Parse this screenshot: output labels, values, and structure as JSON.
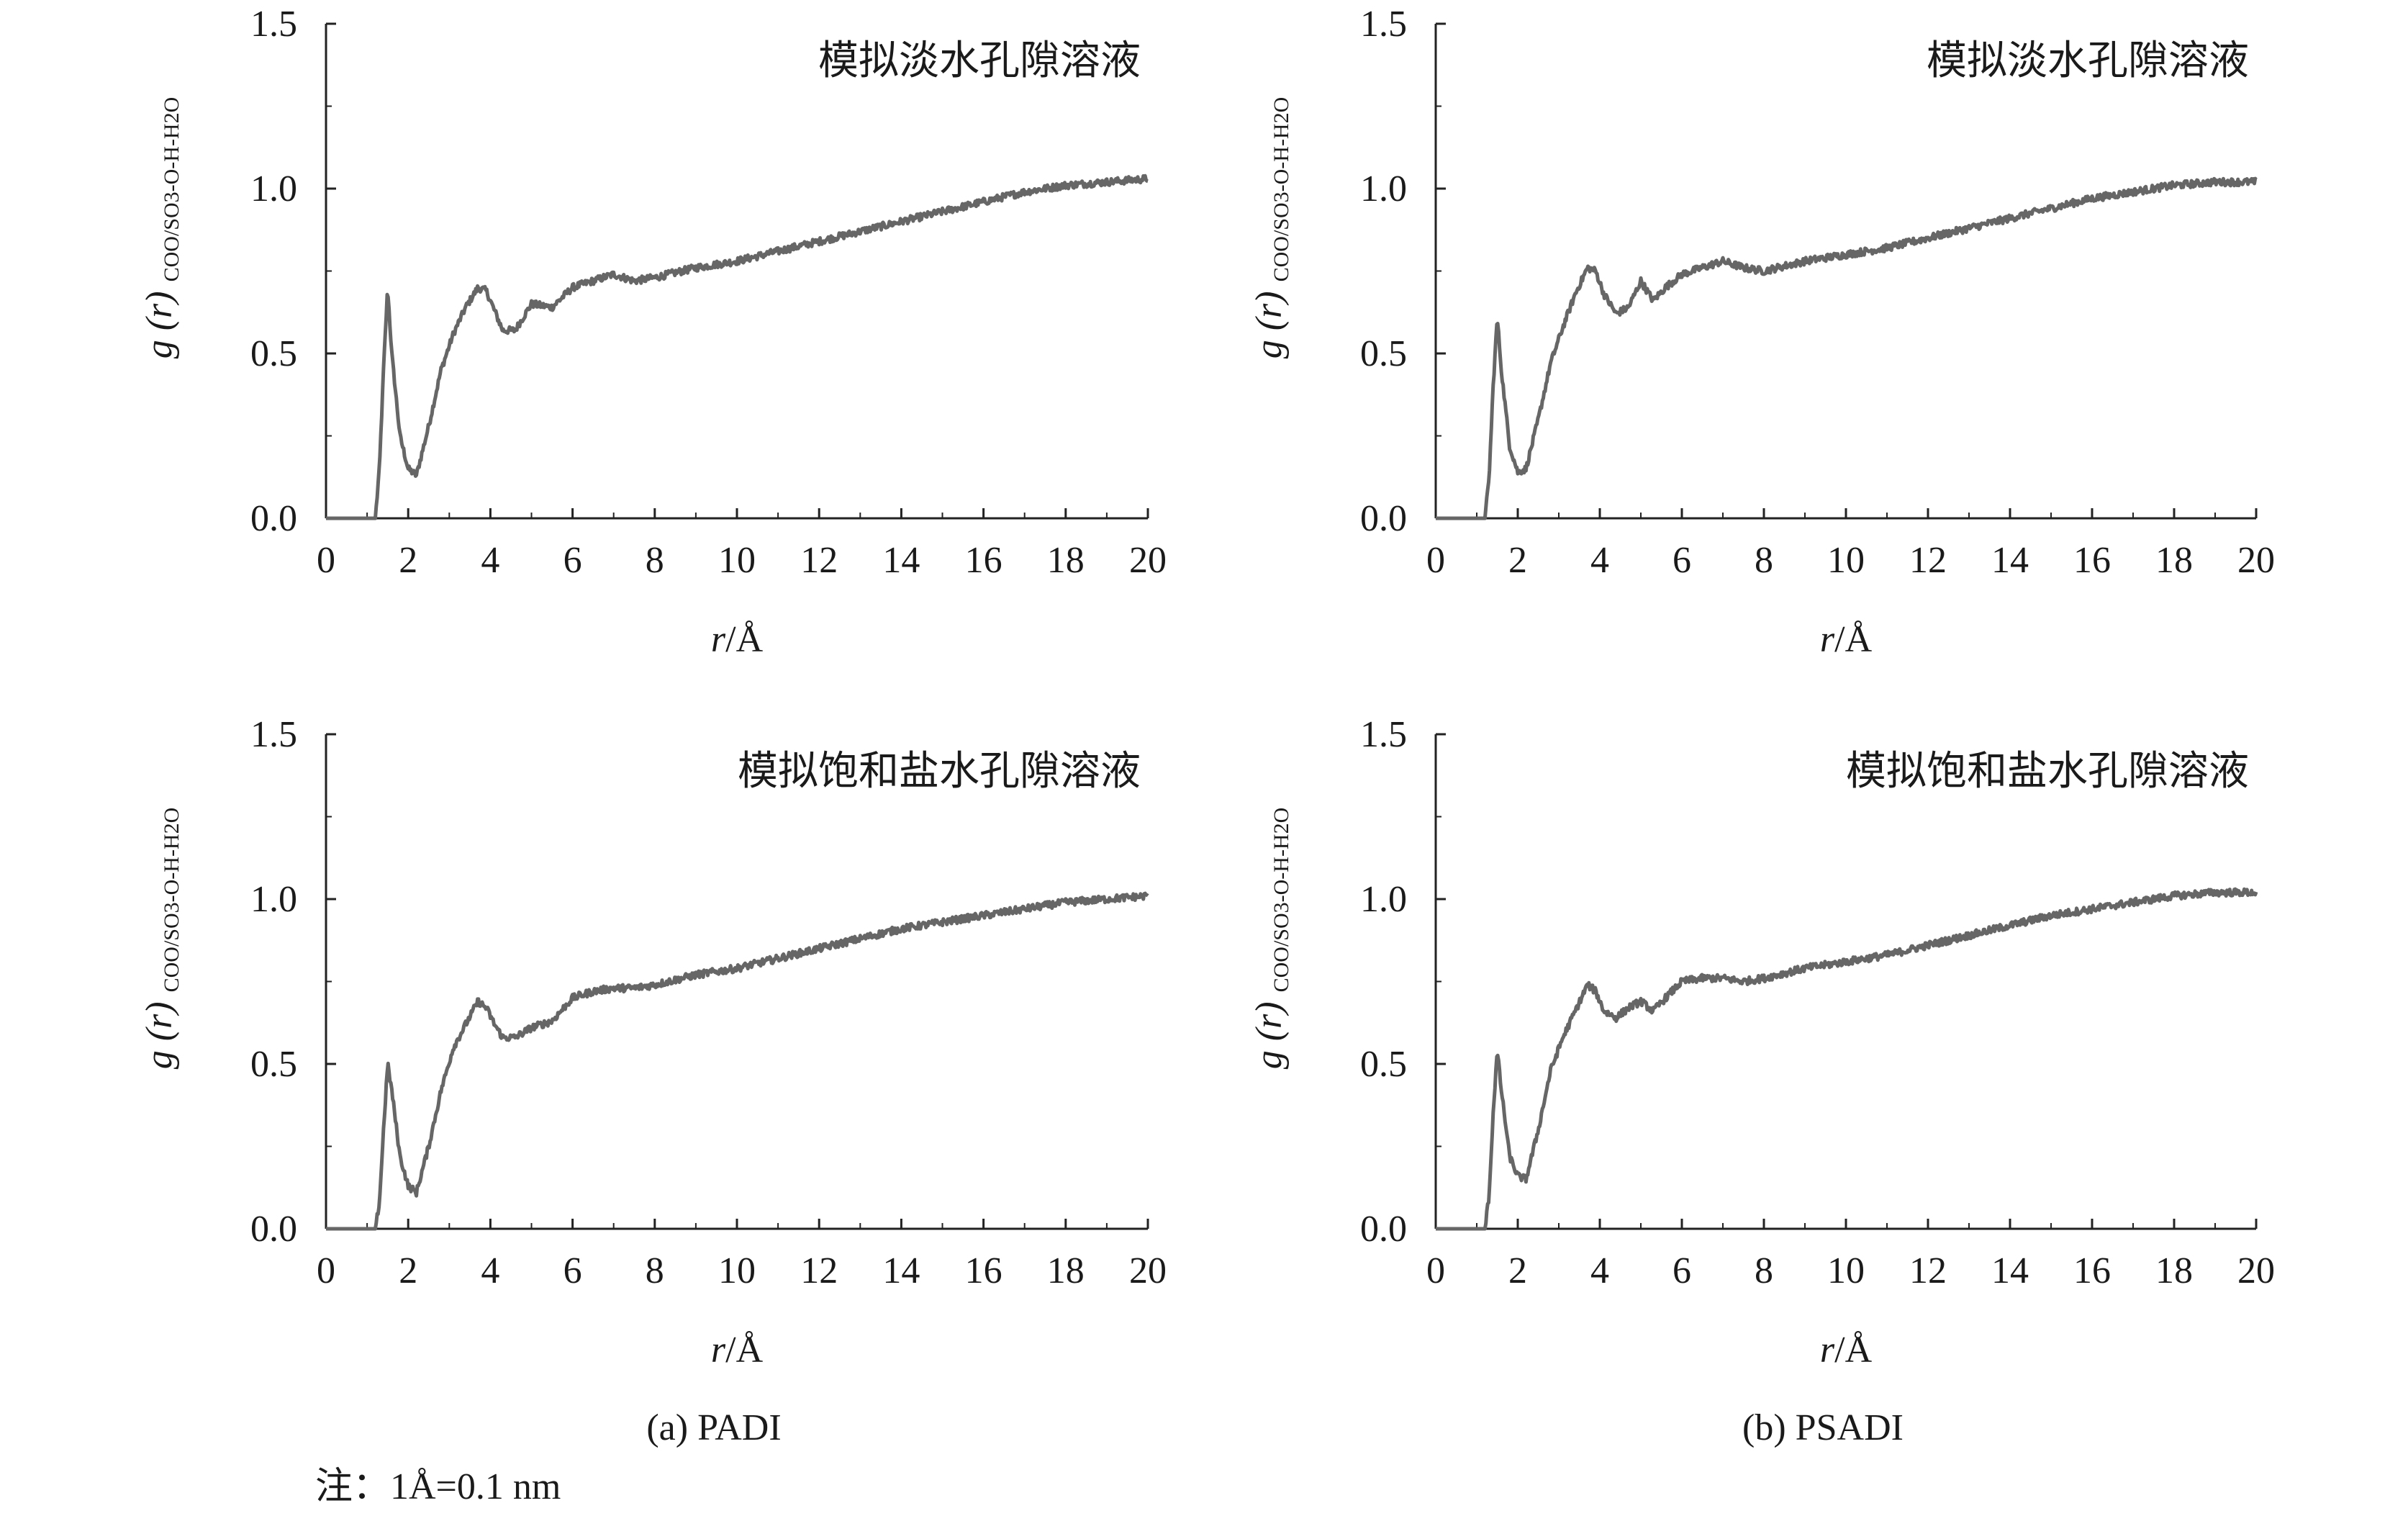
{
  "figure": {
    "caption_a": "(a) PADI",
    "caption_b": "(b) PSADI",
    "note": "注：1Å=0.1 nm"
  },
  "chart_data": [
    {
      "type": "line",
      "panel": "top-left",
      "annotation": "模拟淡水孔隙溶液",
      "xlabel_italic": "r",
      "xlabel_rest": "/Å",
      "ylabel_main": "g (r)",
      "ylabel_sub": "COO/SO3-O-H-H2O",
      "xlim": [
        0,
        20
      ],
      "ylim": [
        0,
        1.5
      ],
      "xticks": [
        "0",
        "2",
        "4",
        "6",
        "8",
        "10",
        "12",
        "14",
        "16",
        "18",
        "20"
      ],
      "yticks": [
        "0.0",
        "0.5",
        "1.0",
        "1.5"
      ],
      "color": "#666666",
      "x": [
        0,
        1.1,
        1.2,
        1.3,
        1.4,
        1.5,
        1.6,
        1.8,
        2.0,
        2.2,
        2.5,
        2.8,
        3.1,
        3.4,
        3.7,
        3.9,
        4.1,
        4.3,
        4.6,
        5.0,
        5.5,
        6.0,
        6.5,
        7.0,
        7.5,
        8.0,
        9,
        10,
        11,
        12,
        13,
        14,
        15,
        16,
        17,
        18,
        19,
        20
      ],
      "y": [
        0,
        0,
        0.0,
        0.15,
        0.45,
        0.7,
        0.5,
        0.25,
        0.15,
        0.13,
        0.28,
        0.45,
        0.56,
        0.64,
        0.7,
        0.69,
        0.63,
        0.57,
        0.57,
        0.65,
        0.64,
        0.7,
        0.72,
        0.74,
        0.72,
        0.73,
        0.76,
        0.78,
        0.81,
        0.84,
        0.87,
        0.9,
        0.93,
        0.96,
        0.99,
        1.01,
        1.02,
        1.03
      ]
    },
    {
      "type": "line",
      "panel": "top-right",
      "annotation": "模拟淡水孔隙溶液",
      "xlabel_italic": "r",
      "xlabel_rest": "/Å",
      "ylabel_main": "g (r)",
      "ylabel_sub": "COO/SO3-O-H-H2O",
      "xlim": [
        0,
        20
      ],
      "ylim": [
        0,
        1.5
      ],
      "xticks": [
        "0",
        "2",
        "4",
        "6",
        "8",
        "10",
        "12",
        "14",
        "16",
        "18",
        "20"
      ],
      "yticks": [
        "0.0",
        "0.5",
        "1.0",
        "1.5"
      ],
      "color": "#666666",
      "x": [
        0,
        1.1,
        1.2,
        1.3,
        1.4,
        1.5,
        1.6,
        1.8,
        2.0,
        2.2,
        2.5,
        2.8,
        3.1,
        3.4,
        3.7,
        3.9,
        4.1,
        4.4,
        4.7,
        5.0,
        5.3,
        5.6,
        6.0,
        6.5,
        7.0,
        7.5,
        8.0,
        9,
        10,
        11,
        12,
        13,
        14,
        15,
        16,
        17,
        18,
        19,
        20
      ],
      "y": [
        0,
        0,
        0.0,
        0.12,
        0.4,
        0.61,
        0.45,
        0.22,
        0.14,
        0.15,
        0.3,
        0.47,
        0.58,
        0.68,
        0.76,
        0.75,
        0.68,
        0.62,
        0.64,
        0.72,
        0.66,
        0.7,
        0.74,
        0.76,
        0.78,
        0.76,
        0.75,
        0.78,
        0.8,
        0.82,
        0.85,
        0.88,
        0.91,
        0.94,
        0.97,
        0.99,
        1.01,
        1.02,
        1.02
      ]
    },
    {
      "type": "line",
      "panel": "bottom-left",
      "annotation": "模拟饱和盐水孔隙溶液",
      "xlabel_italic": "r",
      "xlabel_rest": "/Å",
      "ylabel_main": "g (r)",
      "ylabel_sub": "COO/SO3-O-H-H2O",
      "xlim": [
        0,
        20
      ],
      "ylim": [
        0,
        1.5
      ],
      "xticks": [
        "0",
        "2",
        "4",
        "6",
        "8",
        "10",
        "12",
        "14",
        "16",
        "18",
        "20"
      ],
      "yticks": [
        "0.0",
        "0.5",
        "1.0",
        "1.5"
      ],
      "color": "#666666",
      "x": [
        0,
        1.1,
        1.2,
        1.3,
        1.4,
        1.5,
        1.6,
        1.8,
        2.0,
        2.2,
        2.5,
        2.8,
        3.1,
        3.4,
        3.7,
        3.9,
        4.1,
        4.3,
        4.6,
        5.0,
        5.5,
        6.0,
        6.5,
        7.0,
        7.5,
        8.0,
        9,
        10,
        11,
        12,
        13,
        14,
        15,
        16,
        17,
        18,
        19,
        20
      ],
      "y": [
        0,
        0,
        0.0,
        0.08,
        0.3,
        0.5,
        0.42,
        0.22,
        0.13,
        0.11,
        0.25,
        0.42,
        0.55,
        0.62,
        0.69,
        0.67,
        0.62,
        0.58,
        0.58,
        0.61,
        0.63,
        0.7,
        0.72,
        0.73,
        0.73,
        0.74,
        0.77,
        0.79,
        0.82,
        0.85,
        0.88,
        0.91,
        0.93,
        0.95,
        0.97,
        0.99,
        1.0,
        1.01
      ]
    },
    {
      "type": "line",
      "panel": "bottom-right",
      "annotation": "模拟饱和盐水孔隙溶液",
      "xlabel_italic": "r",
      "xlabel_rest": "/Å",
      "ylabel_main": "g (r)",
      "ylabel_sub": "COO/SO3-O-H-H2O",
      "xlim": [
        0,
        20
      ],
      "ylim": [
        0,
        1.5
      ],
      "xticks": [
        "0",
        "2",
        "4",
        "6",
        "8",
        "10",
        "12",
        "14",
        "16",
        "18",
        "20"
      ],
      "yticks": [
        "0.0",
        "0.5",
        "1.0",
        "1.5"
      ],
      "color": "#666666",
      "x": [
        0,
        1.1,
        1.2,
        1.3,
        1.4,
        1.5,
        1.6,
        1.8,
        2.0,
        2.2,
        2.5,
        2.8,
        3.1,
        3.4,
        3.7,
        3.9,
        4.1,
        4.4,
        4.7,
        5.0,
        5.3,
        5.6,
        6.0,
        6.5,
        7.0,
        7.5,
        8.0,
        9,
        10,
        11,
        12,
        13,
        14,
        15,
        16,
        17,
        18,
        19,
        20
      ],
      "y": [
        0,
        0,
        0.0,
        0.1,
        0.35,
        0.54,
        0.42,
        0.22,
        0.16,
        0.15,
        0.3,
        0.48,
        0.58,
        0.66,
        0.74,
        0.72,
        0.66,
        0.64,
        0.67,
        0.69,
        0.66,
        0.7,
        0.75,
        0.76,
        0.76,
        0.75,
        0.76,
        0.79,
        0.81,
        0.83,
        0.86,
        0.89,
        0.92,
        0.95,
        0.97,
        0.99,
        1.01,
        1.02,
        1.02
      ]
    }
  ]
}
